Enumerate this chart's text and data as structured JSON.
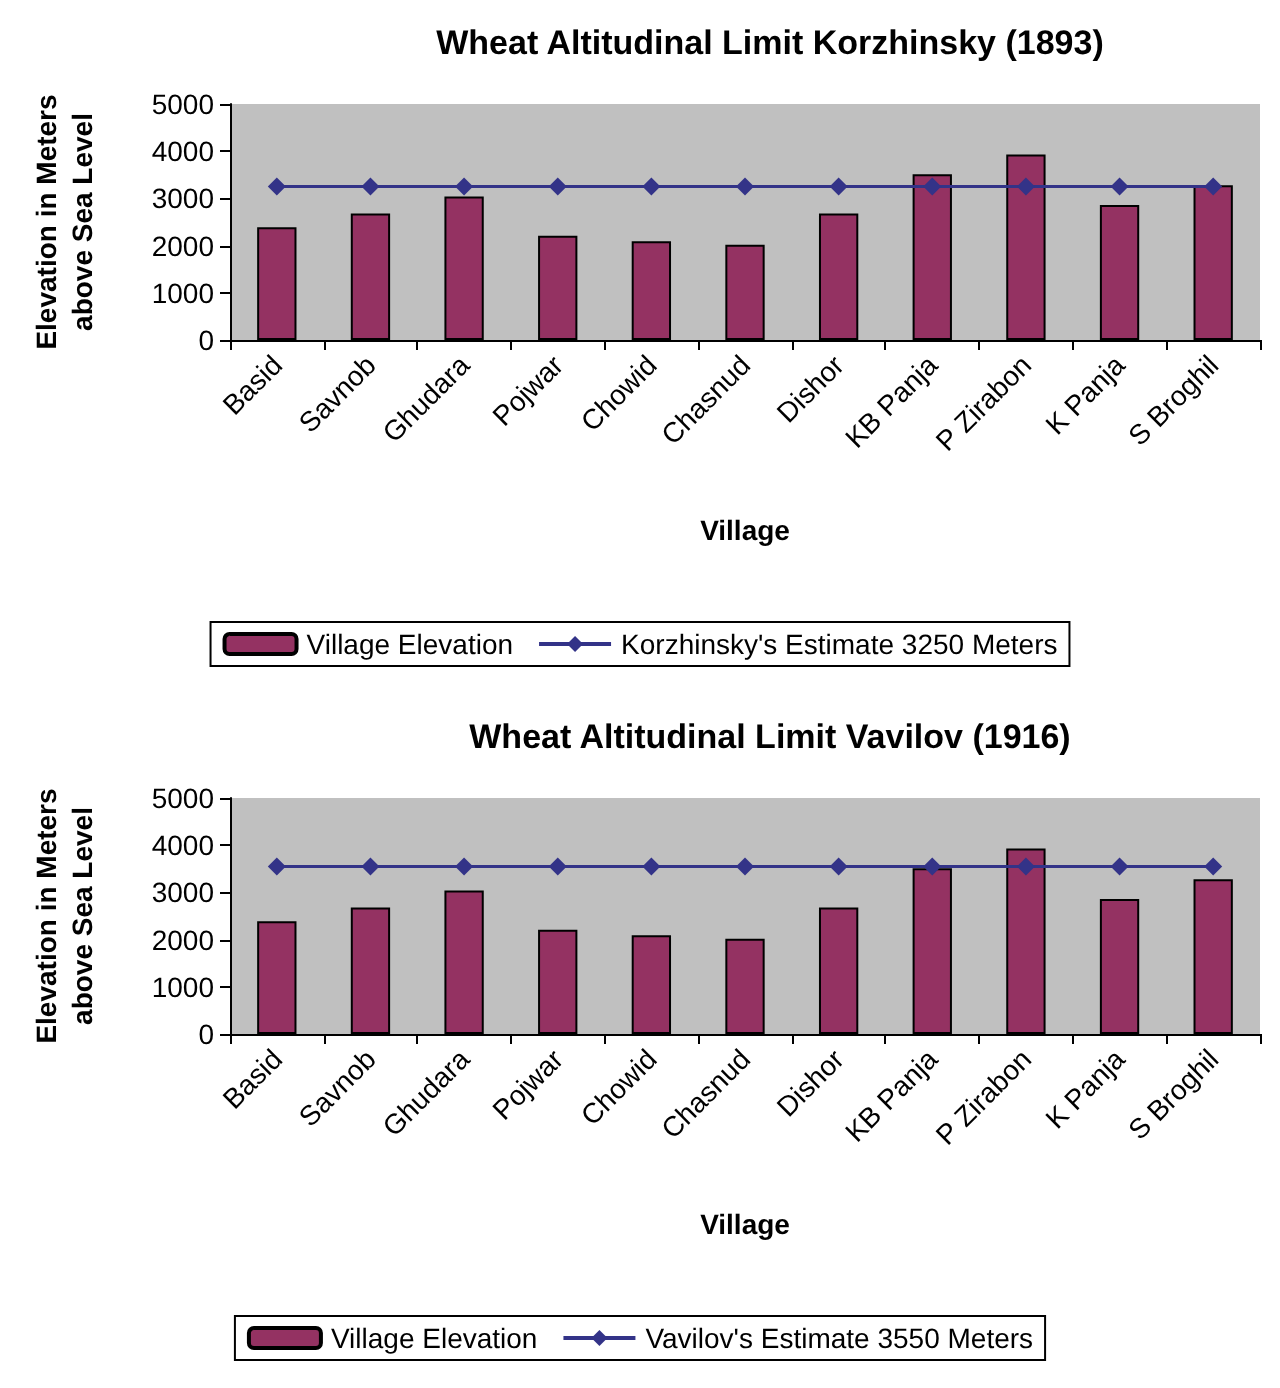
{
  "chart_data": [
    {
      "type": "bar",
      "title": "Wheat Altitudinal Limit Korzhinsky (1893)",
      "xlabel": "Village",
      "ylabel": "Elevation in Meters\nabove Sea Level",
      "categories": [
        "Basid",
        "Savnob",
        "Ghudara",
        "Pojwar",
        "Chowid",
        "Chasnud",
        "Dishor",
        "KB Panja",
        "P Zirabon",
        "K Panja",
        "S Broghil"
      ],
      "series": [
        {
          "name": "Village Elevation",
          "color": "#943262",
          "values": [
            2390,
            2680,
            3040,
            2210,
            2090,
            2020,
            2680,
            3510,
            3930,
            2860,
            3280
          ]
        },
        {
          "name": "Korzhinsky's Estimate 3250 Meters",
          "type": "line",
          "color": "#333388",
          "marker": "diamond",
          "values": [
            3250,
            3250,
            3250,
            3250,
            3250,
            3250,
            3250,
            3250,
            3250,
            3250,
            3250
          ]
        }
      ],
      "ylim": [
        0,
        5000
      ],
      "yticks": [
        0,
        1000,
        2000,
        3000,
        4000,
        5000
      ],
      "grid": false,
      "legend": "bottom"
    },
    {
      "type": "bar",
      "title": "Wheat Altitudinal Limit Vavilov (1916)",
      "xlabel": "Village",
      "ylabel": "Elevation in Meters\nabove Sea Level",
      "categories": [
        "Basid",
        "Savnob",
        "Ghudara",
        "Pojwar",
        "Chowid",
        "Chasnud",
        "Dishor",
        "KB Panja",
        "P Zirabon",
        "K Panja",
        "S Broghil"
      ],
      "series": [
        {
          "name": "Village Elevation",
          "color": "#943262",
          "values": [
            2390,
            2680,
            3040,
            2210,
            2090,
            2020,
            2680,
            3510,
            3930,
            2860,
            3280
          ]
        },
        {
          "name": "Vavilov's Estimate 3550 Meters",
          "type": "line",
          "color": "#333388",
          "marker": "diamond",
          "values": [
            3550,
            3550,
            3550,
            3550,
            3550,
            3550,
            3550,
            3550,
            3550,
            3550,
            3550
          ]
        }
      ],
      "ylim": [
        0,
        5000
      ],
      "yticks": [
        0,
        1000,
        2000,
        3000,
        4000,
        5000
      ],
      "grid": false,
      "legend": "bottom"
    }
  ]
}
